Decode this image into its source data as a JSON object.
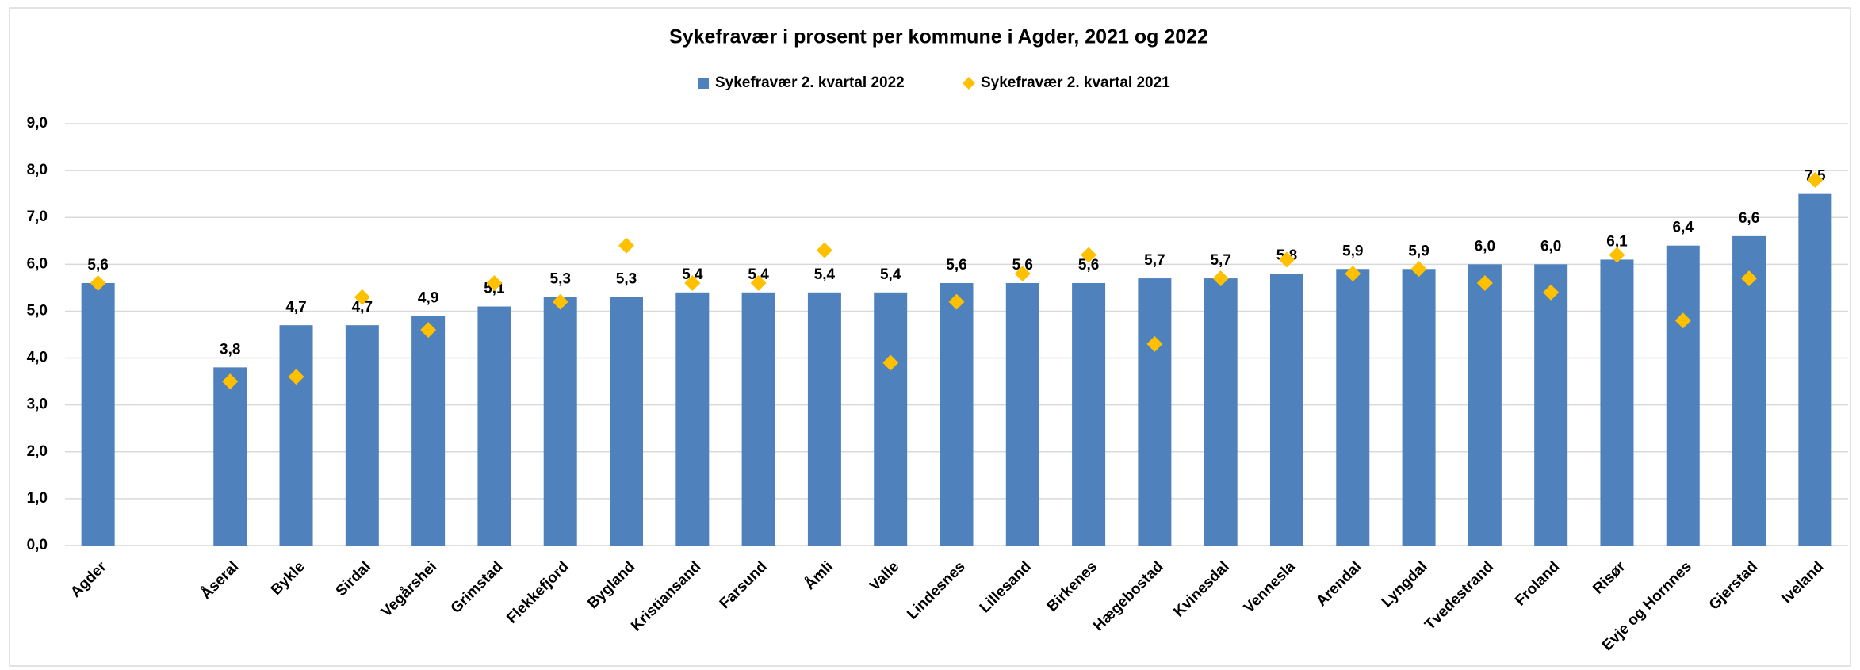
{
  "chart_data": {
    "type": "bar",
    "title": "Sykefravær i prosent per kommune i Agder, 2021 og 2022",
    "categories": [
      "Agder",
      null,
      "Åseral",
      "Bykle",
      "Sirdal",
      "Vegårshei",
      "Grimstad",
      "Flekkefjord",
      "Bygland",
      "Kristiansand",
      "Farsund",
      "Åmli",
      "Valle",
      "Lindesnes",
      "Lillesand",
      "Birkenes",
      "Hægebostad",
      "Kvinesdal",
      "Vennesla",
      "Arendal",
      "Lyngdal",
      "Tvedestrand",
      "Froland",
      "Risør",
      "Evje og Hornnes",
      "Gjerstad",
      "Iveland"
    ],
    "series": [
      {
        "name": "Sykefravær  2. kvartal  2022",
        "color": "#4f81bd",
        "marker": "bar",
        "values": [
          5.6,
          null,
          3.8,
          4.7,
          4.7,
          4.9,
          5.1,
          5.3,
          5.3,
          5.4,
          5.4,
          5.4,
          5.4,
          5.6,
          5.6,
          5.6,
          5.7,
          5.7,
          5.8,
          5.9,
          5.9,
          6.0,
          6.0,
          6.1,
          6.4,
          6.6,
          7.5
        ],
        "value_labels": [
          "5,6",
          null,
          "3,8",
          "4,7",
          "4,7",
          "4,9",
          "5,1",
          "5,3",
          "5,3",
          "5,4",
          "5,4",
          "5,4",
          "5,4",
          "5,6",
          "5,6",
          "5,6",
          "5,7",
          "5,7",
          "5,8",
          "5,9",
          "5,9",
          "6,0",
          "6,0",
          "6,1",
          "6,4",
          "6,6",
          "7,5"
        ]
      },
      {
        "name": "Sykefravær  2. kvartal  2021",
        "color": "#ffc000",
        "marker": "diamond",
        "values": [
          5.6,
          null,
          3.5,
          3.6,
          5.3,
          4.6,
          5.6,
          5.2,
          6.4,
          5.6,
          5.6,
          6.3,
          3.9,
          5.2,
          5.8,
          6.2,
          4.3,
          5.7,
          6.1,
          5.8,
          5.9,
          5.6,
          5.4,
          6.2,
          4.8,
          5.7,
          7.8
        ]
      }
    ],
    "ylim": [
      0,
      9
    ],
    "yticks": [
      {
        "value": 0,
        "label": "0,0"
      },
      {
        "value": 1,
        "label": "1,0"
      },
      {
        "value": 2,
        "label": "2,0"
      },
      {
        "value": 3,
        "label": "3,0"
      },
      {
        "value": 4,
        "label": "4,0"
      },
      {
        "value": 5,
        "label": "5,0"
      },
      {
        "value": 6,
        "label": "6,0"
      },
      {
        "value": 7,
        "label": "7,0"
      },
      {
        "value": 8,
        "label": "8,0"
      },
      {
        "value": 9,
        "label": "9,0"
      }
    ],
    "grid": true,
    "legend": "top"
  }
}
